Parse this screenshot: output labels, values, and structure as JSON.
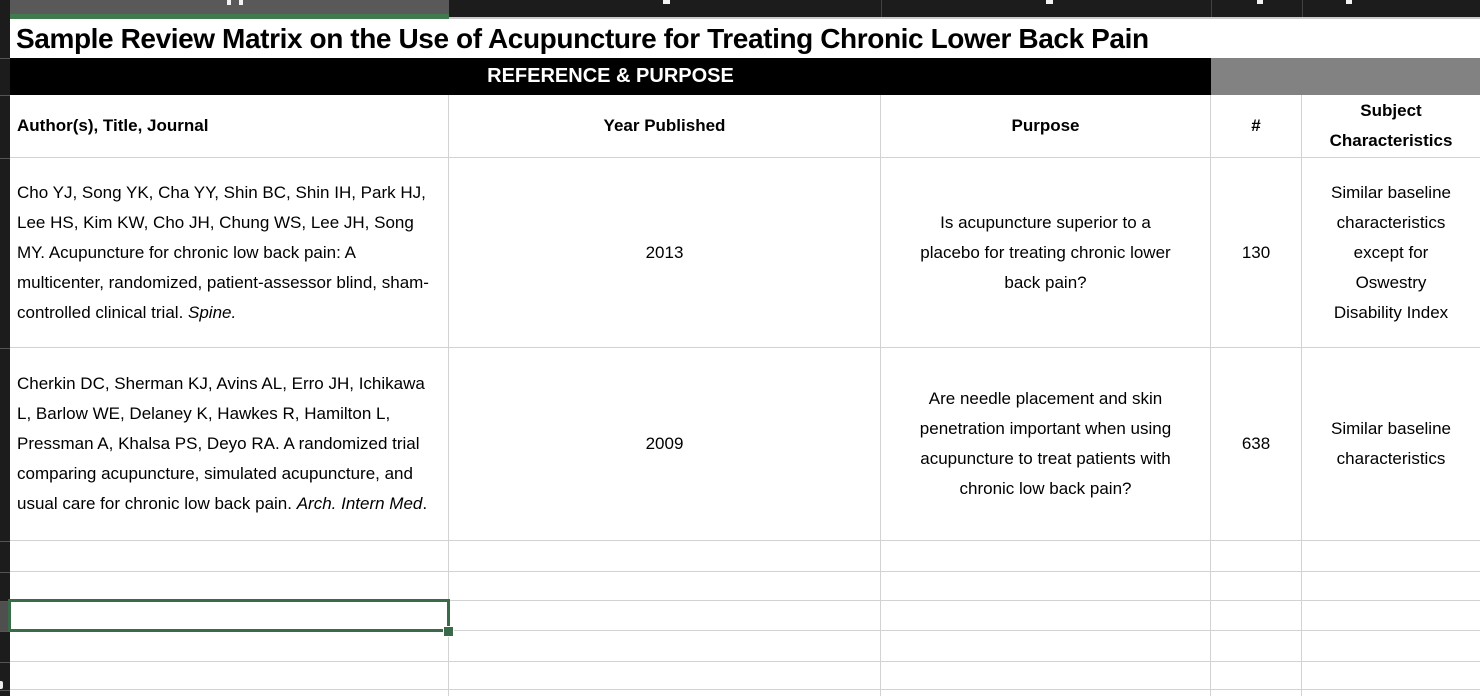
{
  "title": "Sample Review Matrix on the Use of Acupuncture for Treating Chronic Lower Back Pain",
  "section": {
    "reference_purpose": "REFERENCE & PURPOSE"
  },
  "columns": {
    "author": "Author(s), Title, Journal",
    "year": "Year Published",
    "purpose": "Purpose",
    "count": "#",
    "subject_lines": [
      "Subject",
      "Characteristics"
    ]
  },
  "rows": [
    {
      "citation_plain": "Cho YJ, Song YK, Cha YY, Shin BC, Shin IH, Park HJ, Lee HS, Kim KW, Cho JH, Chung WS, Lee JH, Song MY. Acupuncture for chronic low back pain: A multicenter, randomized, patient-assessor blind, sham-controlled clinical trial. ",
      "citation_italic": "Spine.",
      "citation_suffix": "",
      "year": "2013",
      "purpose_lines": [
        "Is acupuncture superior to a",
        "placebo for treating chronic lower",
        "back pain?"
      ],
      "count": "130",
      "subject_lines": [
        "Similar baseline",
        "characteristics",
        "except for",
        "Oswestry",
        "Disability Index"
      ]
    },
    {
      "citation_plain": "Cherkin DC, Sherman KJ, Avins AL, Erro JH, Ichikawa L, Barlow WE, Delaney K, Hawkes R, Hamilton L, Pressman A, Khalsa PS, Deyo RA. A randomized trial comparing acupuncture, simulated acupuncture, and usual care for chronic low back pain. ",
      "citation_italic": "Arch. Intern Med",
      "citation_suffix": ".",
      "year": "2009",
      "purpose_lines": [
        "Are needle placement and skin",
        "penetration important when using",
        "acupuncture to treat patients with",
        "chronic low back pain?"
      ],
      "count": "638",
      "subject_lines": [
        "Similar baseline",
        "characteristics"
      ]
    }
  ],
  "colors": {
    "selection_green": "#3a6b49",
    "column_header_selected_gray": "#595959",
    "column_header_underline_green": "#417a4e",
    "header_bar_black": "#1c1c1c",
    "section_banner_black": "#000000",
    "section_banner_gray": "#828282",
    "gridline": "#d2d2d2"
  }
}
